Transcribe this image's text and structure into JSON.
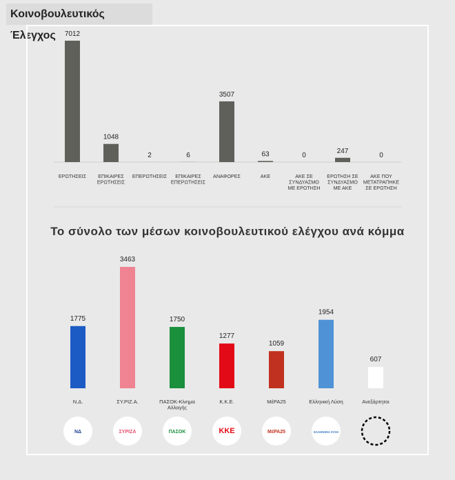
{
  "header": {
    "title": "Κοινοβουλευτικός Έλεγχος"
  },
  "chart_data": [
    {
      "type": "bar",
      "title": "",
      "categories": [
        [
          "ΕΡΩΤΗΣΕΙΣ"
        ],
        [
          "ΕΠΙΚΑΙΡΕΣ",
          "ΕΡΩΤΗΣΕΙΣ"
        ],
        [
          "ΕΠΕΡΩΤΗΣΕΙΣ"
        ],
        [
          "ΕΠΙΚΑΙΡΕΣ",
          "ΕΠΕΡΩΤΗΣΕΙΣ"
        ],
        [
          "ΑΝΑΦΟΡΕΣ"
        ],
        [
          "ΑΚΕ"
        ],
        [
          "ΑΚΕ ΣΕ",
          "ΣΥΝΔΥΑΣΜΟ",
          "ΜΕ ΕΡΩΤΗΣΗ"
        ],
        [
          "ΕΡΩΤΗΣΗ ΣΕ",
          "ΣΥΝΔΥΑΣΜΟ",
          "ΜΕ ΑΚΕ"
        ],
        [
          "ΑΚΕ ΠΟΥ",
          "ΜΕΤΑΤΡΑΠΗΚΕ",
          "ΣΕ ΕΡΩΤΗΣΗ"
        ]
      ],
      "values": [
        7012,
        1048,
        2,
        6,
        3507,
        63,
        0,
        247,
        0
      ],
      "color": "#5f605a",
      "ylim": [
        0,
        7012
      ]
    },
    {
      "type": "bar",
      "title": "Το σύνολο των μέσων κοινοβουλευτικού ελέγχου ανά κόμμα",
      "categories": [
        [
          "Ν.Δ."
        ],
        [
          "ΣΥ.ΡΙΖ.Α."
        ],
        [
          "ΠΑΣΟΚ-Κίνημα",
          "Αλλαγής"
        ],
        [
          "Κ.Κ.Ε."
        ],
        [
          "ΜέΡΑ25"
        ],
        [
          "Ελληνική Λύση"
        ],
        [
          "Ανεξάρτητοι"
        ]
      ],
      "values": [
        1775,
        3463,
        1750,
        1277,
        1059,
        1954,
        607
      ],
      "colors": [
        "#1c5bc4",
        "#ef8391",
        "#1a8f3c",
        "#e20a16",
        "#c0321f",
        "#4f93d6",
        "#ffffff"
      ],
      "logos": [
        "ΝΔ",
        "ΣΥΡΙΖΑ",
        "ΠΑΣΟΚ",
        "ΚΚΕ",
        "ΜέΡΑ25",
        "ΕΛΛΗΝΙΚΗ ΛΥΣΗ",
        ""
      ],
      "logo_colors": [
        "#1c3f94",
        "#e4506a",
        "#1a8f3c",
        "#e20a16",
        "#c0321f",
        "#3a7cc4",
        "#000000"
      ],
      "ylim": [
        0,
        3463
      ]
    }
  ]
}
